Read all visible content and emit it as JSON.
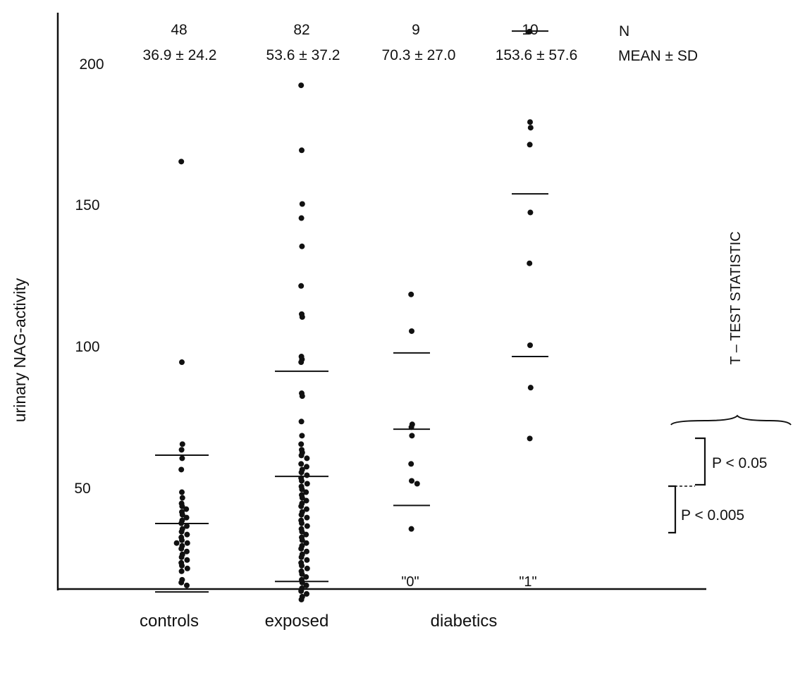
{
  "chart_data": {
    "type": "scatter",
    "ylabel": "urinary NAG-activity",
    "y_ticks": [
      "200",
      "150",
      "100",
      "50"
    ],
    "row_labels": {
      "n": "N",
      "stats": "MEAN ± SD"
    },
    "groups": [
      {
        "name": "controls",
        "n": "48",
        "stats": "36.9 ± 24.2",
        "mean": 36.9,
        "sd_low": 12.7,
        "sd_high": 61.1,
        "values": [
          165,
          94,
          65,
          63,
          60,
          56,
          48,
          46,
          44,
          43,
          42,
          41,
          40,
          39,
          38,
          37,
          36,
          35,
          34,
          33,
          32,
          31,
          30,
          30,
          29,
          28,
          27,
          26,
          25,
          24,
          23,
          22,
          21,
          20,
          17,
          16,
          15
        ]
      },
      {
        "name": "exposed",
        "n": "82",
        "stats": "53.6 ± 37.2",
        "mean": 53.6,
        "sd_low": 16.4,
        "sd_high": 90.8,
        "values": [
          192,
          169,
          150,
          145,
          135,
          121,
          111,
          110,
          96,
          95,
          94,
          83,
          82,
          73,
          68,
          65,
          63,
          62,
          61,
          60,
          58,
          57,
          56,
          55,
          54,
          53,
          52,
          51,
          50,
          49,
          48,
          47,
          46,
          45,
          44,
          43,
          42,
          41,
          40,
          39,
          38,
          37,
          36,
          35,
          34,
          33,
          32,
          31,
          30,
          29,
          28,
          27,
          26,
          25,
          24,
          23,
          22,
          21,
          20,
          19,
          18,
          17,
          16,
          15,
          14,
          13,
          12,
          11,
          10
        ]
      },
      {
        "name": "diabetics \"0\"",
        "n": "9",
        "stats": "70.3 ± 27.0",
        "mean": 70.3,
        "sd_low": 43.3,
        "sd_high": 97.3,
        "values": [
          118,
          105,
          72,
          71,
          68,
          58,
          52,
          51,
          35
        ]
      },
      {
        "name": "diabetics \"1\"",
        "n": "10",
        "stats": "153.6 ± 57.6",
        "mean": 153.6,
        "sd_low": 96.0,
        "sd_high": 211.2,
        "values": [
          211,
          179,
          177,
          171,
          147,
          129,
          100,
          85,
          67
        ]
      }
    ],
    "x_labels": [
      "controls",
      "exposed",
      "diabetics"
    ],
    "sub_labels": [
      "\"0\"",
      "\"1\""
    ],
    "annotations": {
      "t_test_title": "T – TEST STATISTIC",
      "p1": "P < 0.05",
      "p2": "P < 0.005"
    }
  }
}
